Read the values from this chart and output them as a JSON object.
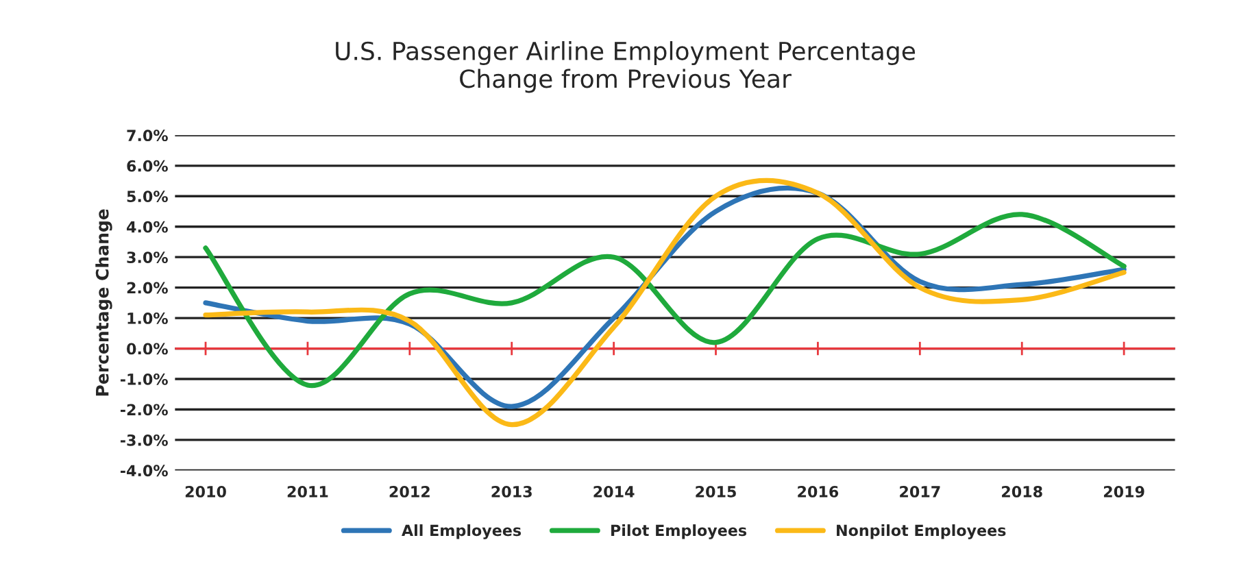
{
  "chart_data": {
    "type": "line",
    "title": "U.S. Passenger Airline Employment Percentage\nChange from Previous Year",
    "ylabel": "Percentage Change",
    "categories": [
      "2010",
      "2011",
      "2012",
      "2013",
      "2014",
      "2015",
      "2016",
      "2017",
      "2018",
      "2019"
    ],
    "series": [
      {
        "name": "All Employees",
        "color": "#2e75b6",
        "values": [
          1.5,
          0.9,
          0.8,
          -1.9,
          1.0,
          4.5,
          5.1,
          2.2,
          2.1,
          2.6
        ]
      },
      {
        "name": "Pilot Employees",
        "color": "#1faa3c",
        "values": [
          3.3,
          -1.2,
          1.8,
          1.5,
          3.0,
          0.2,
          3.6,
          3.1,
          4.4,
          2.7
        ]
      },
      {
        "name": "Nonpilot Employees",
        "color": "#fbb917",
        "values": [
          1.1,
          1.2,
          0.9,
          -2.5,
          0.7,
          5.0,
          5.1,
          2.0,
          1.6,
          2.5
        ]
      }
    ],
    "ylim": [
      -4,
      7
    ],
    "yticks": [
      {
        "value": -4,
        "label": "-4.0%"
      },
      {
        "value": -3,
        "label": "-3.0%"
      },
      {
        "value": -2,
        "label": "-2.0%"
      },
      {
        "value": -1,
        "label": "-1.0%"
      },
      {
        "value": 0,
        "label": "0.0%"
      },
      {
        "value": 1,
        "label": "1.0%"
      },
      {
        "value": 2,
        "label": "2.0%"
      },
      {
        "value": 3,
        "label": "3.0%"
      },
      {
        "value": 4,
        "label": "4.0%"
      },
      {
        "value": 5,
        "label": "5.0%"
      },
      {
        "value": 6,
        "label": "6.0%"
      },
      {
        "value": 7,
        "label": "7.0%"
      }
    ],
    "ref_lines": [
      {
        "axis": "y",
        "value": 0,
        "color": "#e8383d"
      }
    ],
    "grid": "y",
    "legend": "bottom",
    "line_style": "solid",
    "marker": "none"
  }
}
